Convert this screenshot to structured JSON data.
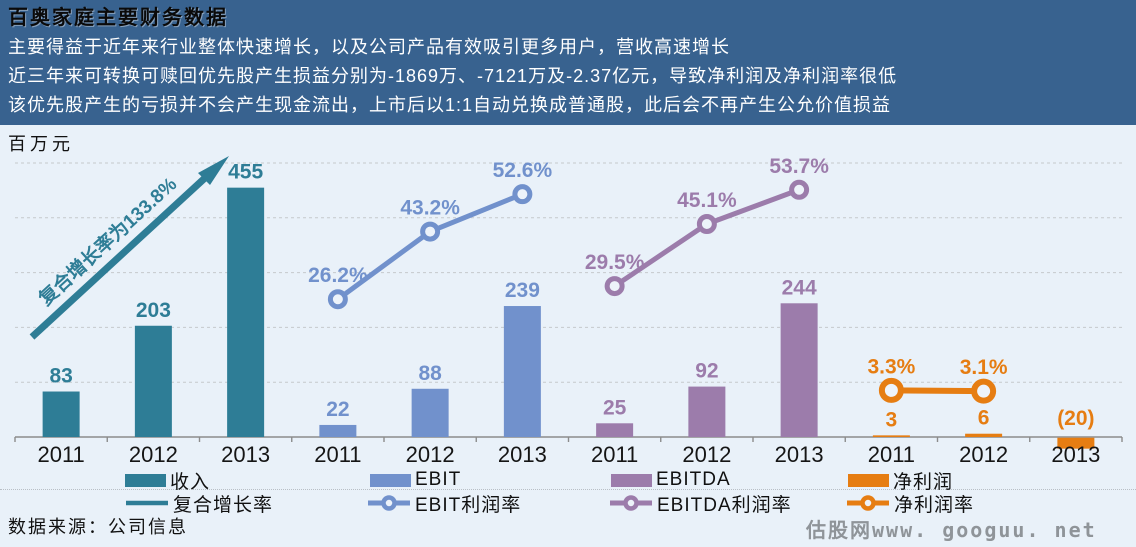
{
  "header": {
    "title": "百奥家庭主要财务数据",
    "lines": [
      "主要得益于近年来行业整体快速增长，以及公司产品有效吸引更多用户，营收高速增长",
      "近三年来可转换可赎回优先股产生损益分别为-1869万、-7121万及-2.37亿元，导致净利润及净利润率很低",
      "该优先股产生的亏损并不会产生现金流出，上市后以1:1自动兑换成普通股，此后会不再产生公允价值损益"
    ]
  },
  "chart_data": {
    "type": "bar+line combo",
    "unit_label": "百万元",
    "years": [
      "2011",
      "2012",
      "2013"
    ],
    "primary_axis": {
      "min": 0,
      "max": 500,
      "gridline_step": 100,
      "grid": "dashed horizontal"
    },
    "groups": [
      {
        "key": "revenue",
        "name": "收入",
        "color": "#2E7D96",
        "values": [
          83,
          203,
          455
        ],
        "annotation": {
          "label": "复合增长率为133.8%",
          "style": "diagonal-arrow"
        }
      },
      {
        "key": "ebit",
        "name": "EBIT",
        "color": "#7191CC",
        "values": [
          22,
          88,
          239
        ],
        "rate": {
          "name": "EBIT利润率",
          "percents": [
            26.2,
            43.2,
            52.6
          ]
        }
      },
      {
        "key": "ebitda",
        "name": "EBITDA",
        "color": "#9C7CAB",
        "values": [
          25,
          92,
          244
        ],
        "rate": {
          "name": "EBITDA利润率",
          "percents": [
            29.5,
            45.1,
            53.7
          ]
        }
      },
      {
        "key": "net-profit",
        "name": "净利润",
        "color": "#E67D12",
        "values": [
          3,
          6,
          -20
        ],
        "value_labels": [
          "3",
          "6",
          "(20)"
        ],
        "rate": {
          "name": "净利润率",
          "percents": [
            3.3,
            3.1,
            null
          ]
        }
      }
    ],
    "legend": {
      "position": "bottom, two rows",
      "bars": [
        "收入",
        "EBIT",
        "EBITDA",
        "净利润"
      ],
      "lines": [
        "复合增长率",
        "EBIT利润率",
        "EBITDA利润率",
        "净利润率"
      ]
    }
  },
  "footer": {
    "source": "数据来源：公司信息",
    "watermark": "估股网www. googuu. net"
  },
  "colors": {
    "header_bg": "#38628F",
    "page_bg": "#E9F1F9",
    "axis": "#8C8C8C",
    "gridline": "#C5C9CC",
    "year_label": "#151515"
  }
}
